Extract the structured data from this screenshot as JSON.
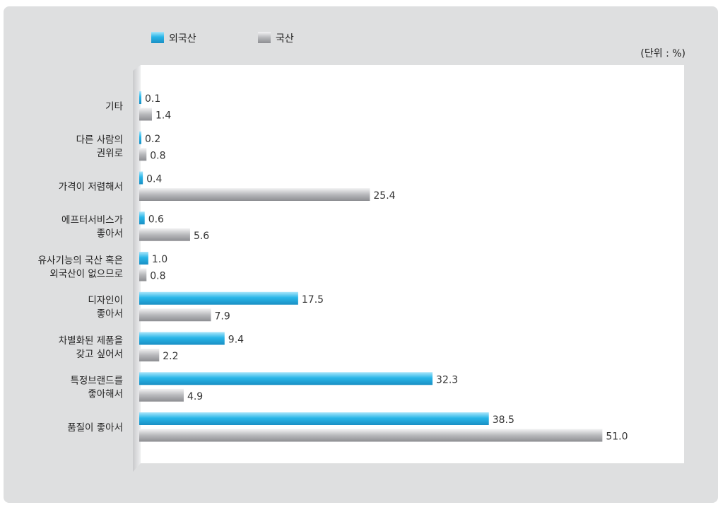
{
  "chart_data": {
    "type": "bar",
    "orientation": "horizontal",
    "unit_note": "(단위 : %)",
    "legend_position": "top-left",
    "categories": [
      [
        "기타"
      ],
      [
        "다른 사람의",
        "권위로"
      ],
      [
        "가격이 저렴해서"
      ],
      [
        "에프터서비스가",
        "좋아서"
      ],
      [
        "유사기능의 국산 혹은",
        "외국산이 없으므로"
      ],
      [
        "디자인이",
        "좋아서"
      ],
      [
        "차별화된 제품을",
        "갖고 싶어서"
      ],
      [
        "특정브랜드를",
        "좋아해서"
      ],
      [
        "품질이 좋아서"
      ]
    ],
    "series": [
      {
        "name": "외국산",
        "color": "#29b6e8",
        "values": [
          0.1,
          0.2,
          0.4,
          0.6,
          1.0,
          17.5,
          9.4,
          32.3,
          38.5
        ]
      },
      {
        "name": "국산",
        "color": "#b8b9bc",
        "values": [
          1.4,
          0.8,
          25.4,
          5.6,
          0.8,
          7.9,
          2.2,
          4.9,
          51.0
        ]
      }
    ],
    "value_labels": [
      [
        "0.1",
        "0.2",
        "0.4",
        "0.6",
        "1.0",
        "17.5",
        "9.4",
        "32.3",
        "38.5"
      ],
      [
        "1.4",
        "0.8",
        "25.4",
        "5.6",
        "0.8",
        "7.9",
        "2.2",
        "4.9",
        "51.0"
      ]
    ],
    "xlim": [
      0,
      51
    ],
    "grid": false
  }
}
